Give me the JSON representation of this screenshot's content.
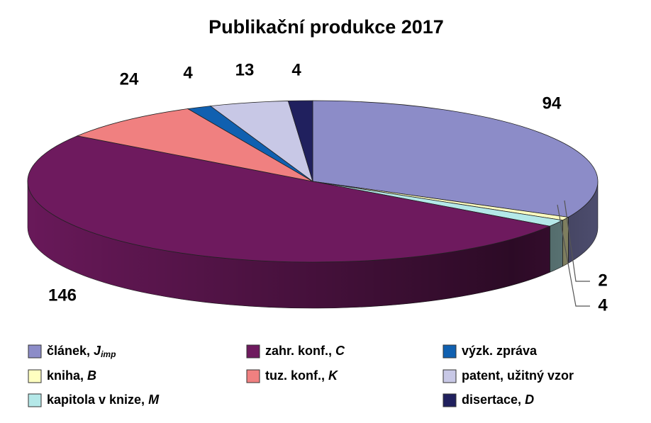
{
  "chart_data": {
    "type": "pie3d",
    "title": "Publikační produkce 2017",
    "series": [
      {
        "name": "článek, ",
        "name_italic": "J",
        "name_sub": "imp",
        "color": "#8c8cc8",
        "values": [
          94
        ]
      },
      {
        "name": "kniha, ",
        "name_italic": "B",
        "color": "#ffffc0",
        "values": [
          2
        ]
      },
      {
        "name": "kapitola v knize, ",
        "name_italic": "M",
        "color": "#b4e8e8",
        "values": [
          4
        ]
      },
      {
        "name": "zahr. konf., ",
        "name_italic": "C",
        "color": "#6e1a5e",
        "values": [
          146
        ]
      },
      {
        "name": "tuz. konf., ",
        "name_italic": "K",
        "color": "#f08080",
        "values": [
          24
        ]
      },
      {
        "name": "výzk. zpráva",
        "color": "#1060b0",
        "values": [
          4
        ]
      },
      {
        "name": "patent, užitný vzor",
        "color": "#c8c8e6",
        "values": [
          13
        ]
      },
      {
        "name": "disertace, ",
        "name_italic": "D",
        "color": "#20205e",
        "values": [
          4
        ]
      }
    ]
  }
}
